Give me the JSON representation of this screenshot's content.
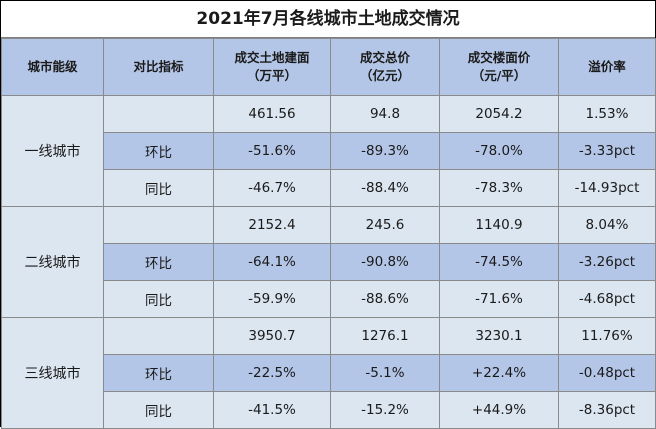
{
  "title": "2021年7月各线城市土地成交情况",
  "headers": {
    "level": "城市能级",
    "metric": "对比指标",
    "area_line1": "成交土地建面",
    "area_line2": "（万平）",
    "total_line1": "成交总价",
    "total_line2": "（亿元）",
    "price_line1": "成交楼面价",
    "price_line2": "（元/平）",
    "premium": "溢价率"
  },
  "groups": [
    {
      "level": "一线城市",
      "rows": [
        {
          "metric": "",
          "area": "461.56",
          "total": "94.8",
          "price": "2054.2",
          "premium": "1.53%"
        },
        {
          "metric": "环比",
          "area": "-51.6%",
          "total": "-89.3%",
          "price": "-78.0%",
          "premium": "-3.33pct"
        },
        {
          "metric": "同比",
          "area": "-46.7%",
          "total": "-88.4%",
          "price": "-78.3%",
          "premium": "-14.93pct"
        }
      ]
    },
    {
      "level": "二线城市",
      "rows": [
        {
          "metric": "",
          "area": "2152.4",
          "total": "245.6",
          "price": "1140.9",
          "premium": "8.04%"
        },
        {
          "metric": "环比",
          "area": "-64.1%",
          "total": "-90.8%",
          "price": "-74.5%",
          "premium": "-3.26pct"
        },
        {
          "metric": "同比",
          "area": "-59.9%",
          "total": "-88.6%",
          "price": "-71.6%",
          "premium": "-4.68pct"
        }
      ]
    },
    {
      "level": "三线城市",
      "rows": [
        {
          "metric": "",
          "area": "3950.7",
          "total": "1276.1",
          "price": "3230.1",
          "premium": "11.76%"
        },
        {
          "metric": "环比",
          "area": "-22.5%",
          "total": "-5.1%",
          "price": "+22.4%",
          "premium": "-0.48pct"
        },
        {
          "metric": "同比",
          "area": "-41.5%",
          "total": "-15.2%",
          "price": "+44.9%",
          "premium": "-8.36pct"
        }
      ]
    }
  ]
}
